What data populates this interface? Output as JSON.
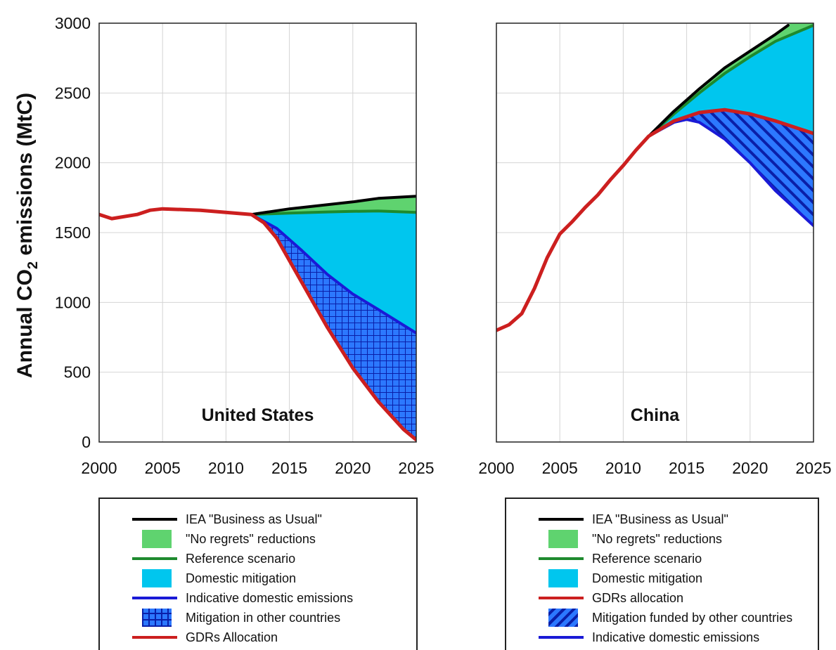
{
  "ylabel": "Annual CO2 emissions (MtC)",
  "ylabel_main": "Annual CO",
  "ylabel_sub": "2",
  "ylabel_tail": " emissions (MtC)",
  "colors": {
    "bau": "#000000",
    "no_regrets": "#5fd36f",
    "reference": "#1e8a2e",
    "domestic_mitigation": "#00c6ee",
    "indicative": "#1a1ad6",
    "mitigation_other": "#1f6bff",
    "gdrs": "#cc1f1f"
  },
  "chart_data": [
    {
      "type": "area",
      "title": "United States",
      "ylabel": "Annual CO2 emissions (MtC)",
      "xlim": [
        2000,
        2025
      ],
      "ylim": [
        0,
        3000
      ],
      "x_ticks": [
        2000,
        2005,
        2010,
        2015,
        2020,
        2025
      ],
      "y_ticks": [
        0,
        500,
        1000,
        1500,
        2000,
        2500,
        3000
      ],
      "grid": true,
      "series": [
        {
          "name": "IEA \"Business as Usual\"",
          "x": [
            2012,
            2015,
            2018,
            2020,
            2022,
            2025
          ],
          "values": [
            1630,
            1670,
            1700,
            1720,
            1745,
            1760
          ]
        },
        {
          "name": "Reference scenario",
          "x": [
            2012,
            2015,
            2018,
            2020,
            2022,
            2025
          ],
          "values": [
            1630,
            1640,
            1648,
            1652,
            1655,
            1645
          ]
        },
        {
          "name": "Indicative domestic emissions",
          "x": [
            2012,
            2014,
            2016,
            2018,
            2020,
            2022,
            2025
          ],
          "values": [
            1630,
            1530,
            1370,
            1200,
            1060,
            950,
            780
          ]
        },
        {
          "name": "GDRs Allocation",
          "x": [
            2000,
            2001,
            2003,
            2004,
            2005,
            2008,
            2012,
            2013,
            2014,
            2016,
            2018,
            2020,
            2022,
            2024,
            2025
          ],
          "values": [
            1630,
            1600,
            1630,
            1660,
            1670,
            1660,
            1630,
            1570,
            1460,
            1140,
            820,
            530,
            290,
            90,
            15
          ]
        }
      ]
    },
    {
      "type": "area",
      "title": "China",
      "xlim": [
        2000,
        2025
      ],
      "ylim": [
        0,
        3000
      ],
      "x_ticks": [
        2000,
        2005,
        2010,
        2015,
        2020,
        2025
      ],
      "y_ticks": [
        0,
        500,
        1000,
        1500,
        2000,
        2500,
        3000
      ],
      "grid": true,
      "series": [
        {
          "name": "IEA \"Business as Usual\"",
          "x": [
            2012,
            2014,
            2016,
            2018,
            2020,
            2022,
            2023
          ],
          "values": [
            2190,
            2370,
            2530,
            2680,
            2800,
            2920,
            2985
          ]
        },
        {
          "name": "Reference scenario",
          "x": [
            2012,
            2014,
            2016,
            2018,
            2020,
            2022,
            2025
          ],
          "values": [
            2190,
            2350,
            2500,
            2640,
            2760,
            2870,
            2985
          ]
        },
        {
          "name": "GDRs allocation",
          "x": [
            2000,
            2001,
            2002,
            2003,
            2004,
            2005,
            2006,
            2007,
            2008,
            2009,
            2010,
            2011,
            2012,
            2014,
            2016,
            2018,
            2020,
            2022,
            2025
          ],
          "values": [
            800,
            840,
            920,
            1100,
            1320,
            1490,
            1580,
            1680,
            1770,
            1880,
            1980,
            2090,
            2190,
            2300,
            2360,
            2380,
            2350,
            2300,
            2210
          ]
        },
        {
          "name": "Indicative domestic emissions",
          "x": [
            2012,
            2014,
            2015,
            2016,
            2018,
            2020,
            2022,
            2025
          ],
          "values": [
            2190,
            2290,
            2310,
            2290,
            2170,
            2000,
            1800,
            1550
          ]
        }
      ]
    }
  ],
  "legends": [
    {
      "items": [
        {
          "kind": "line",
          "color": "#000000",
          "label": "IEA \"Business as Usual\""
        },
        {
          "kind": "rect",
          "color": "#5fd36f",
          "label": "\"No regrets\" reductions"
        },
        {
          "kind": "line",
          "color": "#1e8a2e",
          "label": "Reference scenario"
        },
        {
          "kind": "rect",
          "color": "#00c6ee",
          "label": "Domestic mitigation"
        },
        {
          "kind": "line",
          "color": "#1a1ad6",
          "label": "Indicative domestic emissions"
        },
        {
          "kind": "grid",
          "color": "#1f6bff",
          "label": "Mitigation in other countries"
        },
        {
          "kind": "line",
          "color": "#cc1f1f",
          "label": "GDRs Allocation"
        }
      ]
    },
    {
      "items": [
        {
          "kind": "line",
          "color": "#000000",
          "label": "IEA \"Business as Usual\""
        },
        {
          "kind": "rect",
          "color": "#5fd36f",
          "label": "\"No regrets\" reductions"
        },
        {
          "kind": "line",
          "color": "#1e8a2e",
          "label": "Reference scenario"
        },
        {
          "kind": "rect",
          "color": "#00c6ee",
          "label": "Domestic  mitigation"
        },
        {
          "kind": "line",
          "color": "#cc1f1f",
          "label": "GDRs allocation"
        },
        {
          "kind": "hatch",
          "color": "#1f6bff",
          "label": "Mitigation funded by other countries"
        },
        {
          "kind": "line",
          "color": "#1a1ad6",
          "label": "Indicative domestic emissions"
        }
      ]
    }
  ]
}
